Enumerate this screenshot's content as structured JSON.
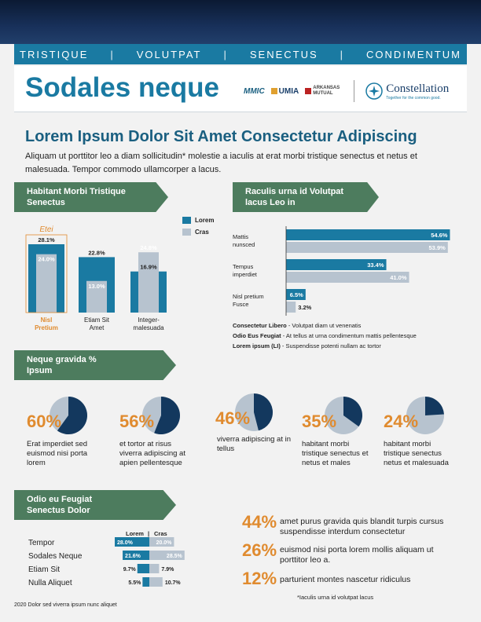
{
  "nav": [
    "TRISTIQUE",
    "VOLUTPAT",
    "SENECTUS",
    "CONDIMENTUM"
  ],
  "nav_sep": "|",
  "title": "Sodales neque",
  "logos": {
    "mmic": "MMIC",
    "umia": "UMIA",
    "arkansas": "ARKANSAS MUTUAL",
    "constellation": "Constellation",
    "constellation_tag": "Together for the common good."
  },
  "headline": "Lorem Ipsum Dolor Sit Amet Consectetur Adipiscing",
  "intro": "Aliquam ut porttitor leo a diam sollicitudin* molestie a iaculis at erat morbi tristique senectus et netus et malesuada. Tempor commodo ullamcorper a lacus.",
  "section1": {
    "ribbon": "Habitant Morbi Tristique Senectus",
    "callout": "Etei",
    "legend": [
      "Lorem",
      "Cras"
    ],
    "colors": {
      "lorem": "#1a7aa2",
      "cras": "#b7c3cf"
    }
  },
  "section2": {
    "ribbon": "Raculis urna id Volutpat lacus Leo in",
    "notes": [
      {
        "bold": "Consectetur Libero",
        "text": " - Volutpat diam ut venenatis"
      },
      {
        "bold": "Odio Eus Feugiat",
        "text": " - At tellus at urna condimentum mattis pellentesque"
      },
      {
        "bold": "Lorem ipsum (LI)",
        "text": " - Suspendisse potenti nullam ac tortor"
      }
    ]
  },
  "section3": {
    "ribbon": "Neque gravida % Ipsum",
    "pies": [
      {
        "pct": "60%",
        "value": 0.6,
        "desc": "Erat imperdiet sed euismod nisi porta lorem"
      },
      {
        "pct": "56%",
        "value": 0.56,
        "desc": "et tortor at risus viverra adipiscing at apien pellentesque"
      },
      {
        "pct": "46%",
        "value": 0.46,
        "desc": "viverra adipiscing at in tellus"
      },
      {
        "pct": "35%",
        "value": 0.35,
        "desc": "habitant morbi tristique senectus et netus et males"
      },
      {
        "pct": "24%",
        "value": 0.24,
        "desc": "habitant morbi tristique senectus netus et malesuada"
      }
    ]
  },
  "section4": {
    "ribbon": "Odio eu Feugiat Senectus Dolor",
    "header_left": "Lorem",
    "header_sep": "|",
    "header_right": "Cras"
  },
  "stats": [
    {
      "num": "44%",
      "text": "amet purus gravida quis blandit turpis cursus suspendisse interdum consectetur"
    },
    {
      "num": "26%",
      "text": "euismod nisi porta lorem mollis aliquam ut porttitor leo a."
    },
    {
      "num": "12%",
      "text": "parturient montes nascetur ridiculus"
    }
  ],
  "footnote": "*Iaculis urna id volutpat lacus",
  "footer": "2020 Dolor sed viverra ipsum nunc aliquet",
  "chart_data": [
    {
      "type": "bar",
      "categories": [
        "Nisl Pretium",
        "Etiam Sit Amet",
        "Integer-malesuada"
      ],
      "series": [
        {
          "name": "Lorem",
          "values": [
            28.1,
            22.8,
            16.9
          ]
        },
        {
          "name": "Cras",
          "values": [
            24.0,
            13.0,
            24.8
          ]
        }
      ],
      "labels": [
        [
          "28.1%",
          "24.0%"
        ],
        [
          "22.8%",
          "13.0%"
        ],
        [
          "16.9%",
          "24.8%"
        ]
      ],
      "ylim": [
        0,
        30
      ]
    },
    {
      "type": "bar",
      "orientation": "horizontal",
      "categories": [
        "Mattis nunsced",
        "Tempus imperdiet",
        "Nisl pretium Fusce"
      ],
      "series": [
        {
          "name": "Lorem",
          "values": [
            54.6,
            33.4,
            6.5
          ]
        },
        {
          "name": "Cras",
          "values": [
            53.9,
            41.0,
            3.2
          ]
        }
      ],
      "labels": [
        [
          "54.6%",
          "53.9%"
        ],
        [
          "33.4%",
          "41.0%"
        ],
        [
          "6.5%",
          "3.2%"
        ]
      ],
      "xlim": [
        0,
        55
      ]
    },
    {
      "type": "bar",
      "orientation": "diverging",
      "categories": [
        "Tempor",
        "Sodales Neque",
        "Etiam Sit",
        "Nulla Aliquet"
      ],
      "series": [
        {
          "name": "Lorem",
          "values": [
            28.0,
            21.6,
            9.7,
            5.5
          ]
        },
        {
          "name": "Cras",
          "values": [
            20.0,
            28.5,
            7.9,
            10.7
          ]
        }
      ],
      "labels": [
        [
          "28.0%",
          "20.0%"
        ],
        [
          "21.6%",
          "28.5%"
        ],
        [
          "9.7%",
          "7.9%"
        ],
        [
          "5.5%",
          "10.7%"
        ]
      ],
      "xlim": [
        0,
        30
      ]
    }
  ]
}
